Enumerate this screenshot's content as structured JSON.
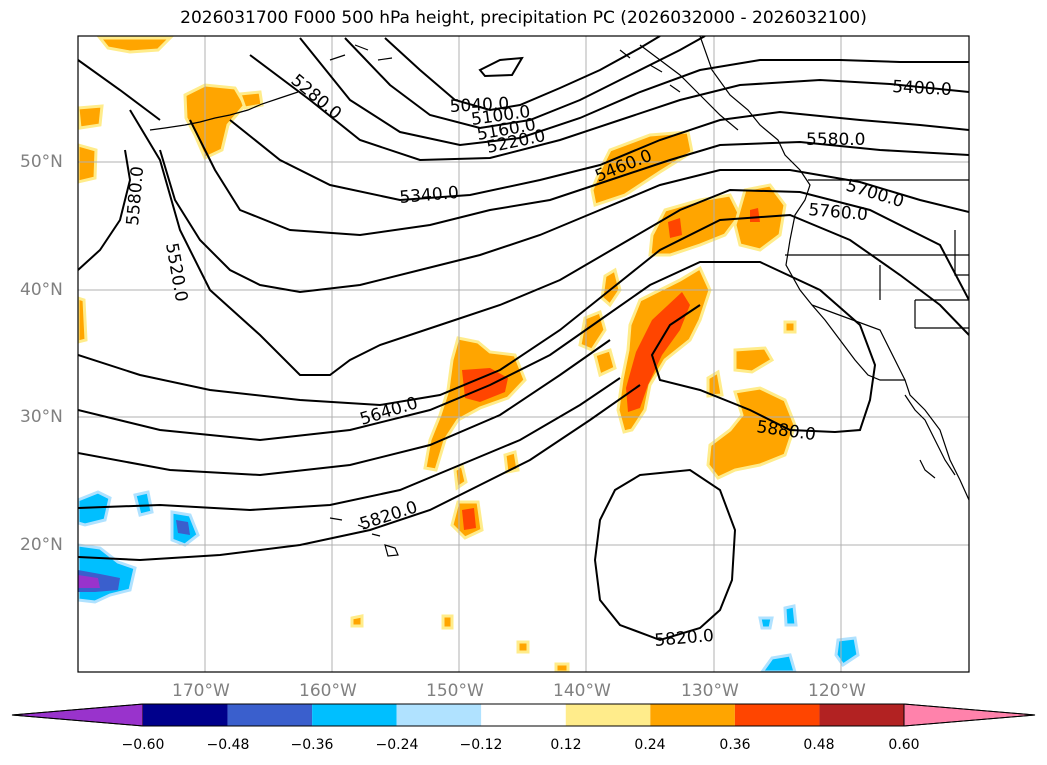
{
  "title": "2026031700 F000 500 hPa height, precipitation PC (2026032000 - 2026032100)",
  "map": {
    "lat_labels": [
      "50°N",
      "40°N",
      "30°N",
      "20°N"
    ],
    "lon_labels": [
      "170°W",
      "160°W",
      "150°W",
      "140°W",
      "130°W",
      "120°W"
    ],
    "contour_labels": [
      "5040.0",
      "5100.0",
      "5160.0",
      "5220.0",
      "5280.0",
      "5340.0",
      "5400.0",
      "5460.0",
      "5520.0",
      "5580.0",
      "5580.0",
      "5640.0",
      "5700.0",
      "5760.0",
      "5820.0",
      "5820.0",
      "5880.0"
    ],
    "gridline_color": "#b0b0b0"
  },
  "colorbar": {
    "ticks": [
      "−0.60",
      "−0.48",
      "−0.36",
      "−0.24",
      "−0.12",
      "0.12",
      "0.24",
      "0.36",
      "0.48",
      "0.60"
    ],
    "colors": [
      "#9933cc",
      "#00008b",
      "#3a5fcd",
      "#00bfff",
      "#b0e2ff",
      "#ffffff",
      "#ffec8b",
      "#ffa500",
      "#ff4500",
      "#b22222",
      "#ff82ab"
    ]
  }
}
